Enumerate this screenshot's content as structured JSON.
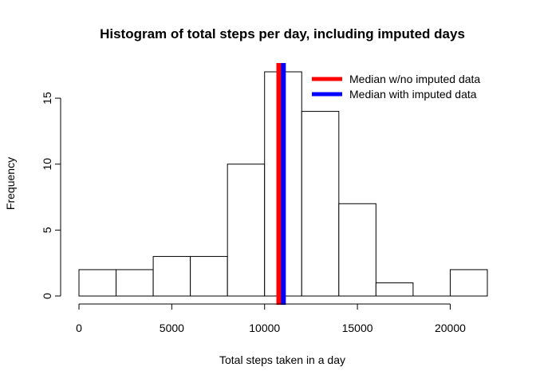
{
  "chart_data": {
    "type": "bar",
    "title": "Histogram of total steps per day, including imputed days",
    "xlabel": "Total steps taken in a day",
    "ylabel": "Frequency",
    "bins": [
      {
        "from": 0,
        "to": 2000,
        "count": 2
      },
      {
        "from": 2000,
        "to": 4000,
        "count": 2
      },
      {
        "from": 4000,
        "to": 6000,
        "count": 3
      },
      {
        "from": 6000,
        "to": 8000,
        "count": 3
      },
      {
        "from": 8000,
        "to": 10000,
        "count": 10
      },
      {
        "from": 10000,
        "to": 12000,
        "count": 17
      },
      {
        "from": 12000,
        "to": 14000,
        "count": 14
      },
      {
        "from": 14000,
        "to": 16000,
        "count": 7
      },
      {
        "from": 16000,
        "to": 18000,
        "count": 1
      },
      {
        "from": 18000,
        "to": 20000,
        "count": 0
      },
      {
        "from": 20000,
        "to": 22000,
        "count": 2
      }
    ],
    "xlim": [
      0,
      22000
    ],
    "ylim": [
      0,
      17
    ],
    "xticks": [
      {
        "value": 0,
        "label": "0"
      },
      {
        "value": 5000,
        "label": "5000"
      },
      {
        "value": 10000,
        "label": "10000"
      },
      {
        "value": 15000,
        "label": "15000"
      },
      {
        "value": 20000,
        "label": "20000"
      }
    ],
    "yticks": [
      {
        "value": 0,
        "label": "0"
      },
      {
        "value": 5,
        "label": "5"
      },
      {
        "value": 10,
        "label": "10"
      },
      {
        "value": 15,
        "label": "15"
      }
    ],
    "vlines": [
      {
        "name": "Median w/no imputed data",
        "value": 10765,
        "color": "#ff0000"
      },
      {
        "name": "Median with imputed data",
        "value": 11015,
        "color": "#0000ff"
      }
    ],
    "legend_position": "top-right",
    "grid": false
  }
}
